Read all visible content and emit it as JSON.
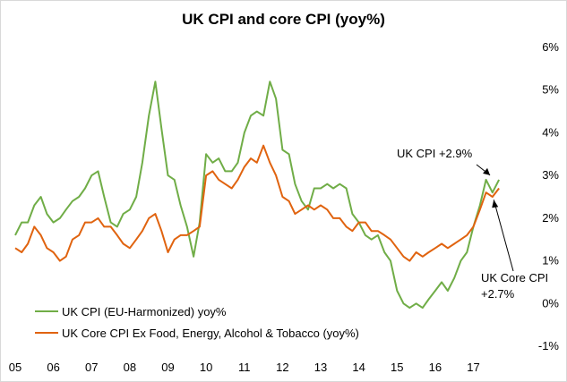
{
  "chart_data": {
    "type": "line",
    "title": "UK CPI and core CPI (yoy%)",
    "xlabel": "",
    "ylabel": "",
    "x_ticks": [
      "05",
      "06",
      "07",
      "08",
      "09",
      "10",
      "11",
      "12",
      "13",
      "14",
      "15",
      "16",
      "17"
    ],
    "y_ticks": [
      "-1%",
      "0%",
      "1%",
      "2%",
      "3%",
      "4%",
      "5%",
      "6%"
    ],
    "ylim": [
      -1,
      6
    ],
    "xlim": [
      2005.0,
      2017.95
    ],
    "y_axis_side": "right",
    "grid": false,
    "legend_position": "bottom-left",
    "series": [
      {
        "name": "UK CPI (EU-Harmonized) yoy%",
        "color": "#70ad47",
        "x": [
          2005.0,
          2005.17,
          2005.33,
          2005.5,
          2005.67,
          2005.83,
          2006.0,
          2006.17,
          2006.33,
          2006.5,
          2006.67,
          2006.83,
          2007.0,
          2007.17,
          2007.33,
          2007.5,
          2007.67,
          2007.83,
          2008.0,
          2008.17,
          2008.33,
          2008.5,
          2008.67,
          2008.83,
          2009.0,
          2009.17,
          2009.33,
          2009.5,
          2009.67,
          2009.83,
          2010.0,
          2010.17,
          2010.33,
          2010.5,
          2010.67,
          2010.83,
          2011.0,
          2011.17,
          2011.33,
          2011.5,
          2011.67,
          2011.83,
          2012.0,
          2012.17,
          2012.33,
          2012.5,
          2012.67,
          2012.83,
          2013.0,
          2013.17,
          2013.33,
          2013.5,
          2013.67,
          2013.83,
          2014.0,
          2014.17,
          2014.33,
          2014.5,
          2014.67,
          2014.83,
          2015.0,
          2015.17,
          2015.33,
          2015.5,
          2015.67,
          2015.83,
          2016.0,
          2016.17,
          2016.33,
          2016.5,
          2016.67,
          2016.83,
          2017.0,
          2017.17,
          2017.33,
          2017.5,
          2017.67
        ],
        "values": [
          1.6,
          1.9,
          1.9,
          2.3,
          2.5,
          2.1,
          1.9,
          2.0,
          2.2,
          2.4,
          2.5,
          2.7,
          3.0,
          3.1,
          2.5,
          1.9,
          1.8,
          2.1,
          2.2,
          2.5,
          3.3,
          4.4,
          5.2,
          4.1,
          3.0,
          2.9,
          2.3,
          1.8,
          1.1,
          1.9,
          3.5,
          3.3,
          3.4,
          3.1,
          3.1,
          3.3,
          4.0,
          4.4,
          4.5,
          4.4,
          5.2,
          4.8,
          3.6,
          3.5,
          2.8,
          2.4,
          2.2,
          2.7,
          2.7,
          2.8,
          2.7,
          2.8,
          2.7,
          2.1,
          1.9,
          1.6,
          1.5,
          1.6,
          1.2,
          1.0,
          0.3,
          0.0,
          -0.1,
          0.0,
          -0.1,
          0.1,
          0.3,
          0.5,
          0.3,
          0.6,
          1.0,
          1.2,
          1.8,
          2.3,
          2.9,
          2.6,
          2.9
        ]
      },
      {
        "name": "UK Core CPI Ex Food, Energy, Alcohol & Tobacco (yoy%)",
        "color": "#e0630f",
        "x": [
          2005.0,
          2005.17,
          2005.33,
          2005.5,
          2005.67,
          2005.83,
          2006.0,
          2006.17,
          2006.33,
          2006.5,
          2006.67,
          2006.83,
          2007.0,
          2007.17,
          2007.33,
          2007.5,
          2007.67,
          2007.83,
          2008.0,
          2008.17,
          2008.33,
          2008.5,
          2008.67,
          2008.83,
          2009.0,
          2009.17,
          2009.33,
          2009.5,
          2009.67,
          2009.83,
          2010.0,
          2010.17,
          2010.33,
          2010.5,
          2010.67,
          2010.83,
          2011.0,
          2011.17,
          2011.33,
          2011.5,
          2011.67,
          2011.83,
          2012.0,
          2012.17,
          2012.33,
          2012.5,
          2012.67,
          2012.83,
          2013.0,
          2013.17,
          2013.33,
          2013.5,
          2013.67,
          2013.83,
          2014.0,
          2014.17,
          2014.33,
          2014.5,
          2014.67,
          2014.83,
          2015.0,
          2015.17,
          2015.33,
          2015.5,
          2015.67,
          2015.83,
          2016.0,
          2016.17,
          2016.33,
          2016.5,
          2016.67,
          2016.83,
          2017.0,
          2017.17,
          2017.33,
          2017.5,
          2017.67
        ],
        "values": [
          1.3,
          1.2,
          1.4,
          1.8,
          1.6,
          1.3,
          1.2,
          1.0,
          1.1,
          1.5,
          1.6,
          1.9,
          1.9,
          2.0,
          1.8,
          1.8,
          1.6,
          1.4,
          1.3,
          1.5,
          1.7,
          2.0,
          2.1,
          1.7,
          1.2,
          1.5,
          1.6,
          1.6,
          1.7,
          1.8,
          3.0,
          3.1,
          2.9,
          2.8,
          2.7,
          2.9,
          3.2,
          3.4,
          3.3,
          3.7,
          3.3,
          3.0,
          2.5,
          2.4,
          2.1,
          2.2,
          2.3,
          2.2,
          2.3,
          2.2,
          2.0,
          2.0,
          1.8,
          1.7,
          1.9,
          1.9,
          1.7,
          1.7,
          1.6,
          1.5,
          1.3,
          1.1,
          1.0,
          1.2,
          1.1,
          1.2,
          1.3,
          1.4,
          1.3,
          1.4,
          1.5,
          1.6,
          1.8,
          2.2,
          2.6,
          2.5,
          2.7
        ]
      }
    ],
    "annotations": [
      {
        "text_lines": [
          "UK CPI +2.9%"
        ],
        "x": 2017.67,
        "y": 2.9
      },
      {
        "text_lines": [
          "UK Core CPI",
          "+2.7%"
        ],
        "x": 2017.58,
        "y": 2.6
      }
    ]
  }
}
